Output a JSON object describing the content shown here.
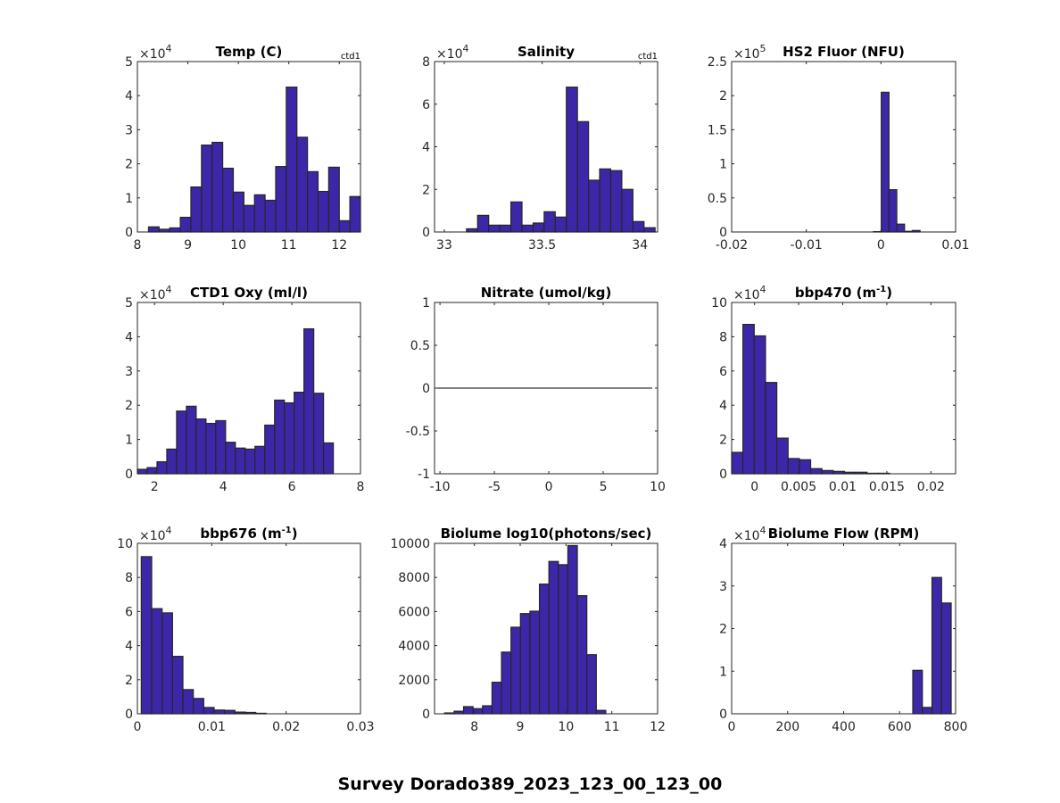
{
  "figure": {
    "title": "Survey Dorado389_2023_123_00_123_00",
    "bar_color": "#3d26a8",
    "edge_color": "#262626",
    "axis_color": "#262626"
  },
  "chart_data": [
    {
      "type": "bar",
      "title": "Temp (C)",
      "corner_label": "ctd1",
      "exponent_label": "×10",
      "exponent": "4",
      "xlim": [
        8,
        12.42
      ],
      "ylim": [
        0,
        5
      ],
      "xticks": [
        8,
        9,
        10,
        11,
        12
      ],
      "xtick_labels": [
        "8",
        "9",
        "10",
        "11",
        "12"
      ],
      "yticks": [
        0,
        1,
        2,
        3,
        4,
        5
      ],
      "ytick_labels": [
        "0",
        "1",
        "2",
        "3",
        "4",
        "5"
      ],
      "bin_start": 8.22,
      "bin_width": 0.21,
      "values": [
        0.15,
        0.08,
        0.12,
        0.43,
        1.32,
        2.55,
        2.63,
        1.87,
        1.17,
        0.78,
        1.09,
        0.93,
        1.92,
        4.25,
        2.78,
        1.77,
        1.19,
        1.9,
        0.33,
        1.04
      ]
    },
    {
      "type": "bar",
      "title": "Salinity",
      "corner_label": "ctd1",
      "exponent_label": "×10",
      "exponent": "4",
      "xlim": [
        32.95,
        34.09
      ],
      "ylim": [
        0,
        8
      ],
      "xticks": [
        33,
        33.5,
        34
      ],
      "xtick_labels": [
        "33",
        "33.5",
        "34"
      ],
      "yticks": [
        0,
        2,
        4,
        6,
        8
      ],
      "ytick_labels": [
        "0",
        "2",
        "4",
        "6",
        "8"
      ],
      "bin_start": 33.0,
      "bin_width": 0.0567,
      "values": [
        0,
        0,
        0.15,
        0.78,
        0.32,
        0.32,
        1.41,
        0.32,
        0.42,
        0.95,
        0.7,
        6.8,
        5.18,
        2.43,
        2.96,
        2.88,
        2.0,
        0.49,
        0.2
      ]
    },
    {
      "type": "bar",
      "title": "HS2 Fluor (NFU)",
      "corner_label": "",
      "exponent_label": "×10",
      "exponent": "5",
      "xlim": [
        -0.02,
        0.01
      ],
      "ylim": [
        0,
        2.5
      ],
      "xticks": [
        -0.02,
        -0.01,
        0,
        0.01
      ],
      "xtick_labels": [
        "-0.02",
        "-0.01",
        "0",
        "0.01"
      ],
      "yticks": [
        0,
        0.5,
        1,
        1.5,
        2,
        2.5
      ],
      "ytick_labels": [
        "0",
        "0.5",
        "1",
        "1.5",
        "2",
        "2.5"
      ],
      "bin_start": -0.001,
      "bin_width": 0.00104,
      "values": [
        0.005,
        2.05,
        0.62,
        0.115,
        0.01,
        0.022
      ]
    },
    {
      "type": "bar",
      "title": "CTD1 Oxy (ml/l)",
      "corner_label": "",
      "exponent_label": "×10",
      "exponent": "4",
      "xlim": [
        1.5,
        8
      ],
      "ylim": [
        0,
        5
      ],
      "xticks": [
        2,
        4,
        6,
        8
      ],
      "xtick_labels": [
        "2",
        "4",
        "6",
        "8"
      ],
      "yticks": [
        0,
        1,
        2,
        3,
        4,
        5
      ],
      "ytick_labels": [
        "0",
        "1",
        "2",
        "3",
        "4",
        "5"
      ],
      "bin_start": 1.5,
      "bin_width": 0.2855,
      "values": [
        0.13,
        0.18,
        0.35,
        0.72,
        1.83,
        1.97,
        1.6,
        1.47,
        1.55,
        0.92,
        0.75,
        0.72,
        0.8,
        1.42,
        2.15,
        2.07,
        2.38,
        4.23,
        2.35,
        0.9
      ]
    },
    {
      "type": "line",
      "title": "Nitrate (umol/kg)",
      "corner_label": "",
      "exponent_label": "",
      "exponent": "",
      "xlim": [
        -10.5,
        10
      ],
      "ylim": [
        -1,
        1
      ],
      "xticks": [
        -10,
        -5,
        0,
        5,
        10
      ],
      "xtick_labels": [
        "-10",
        "-5",
        "0",
        "5",
        "10"
      ],
      "yticks": [
        -1,
        -0.5,
        0,
        0.5,
        1
      ],
      "ytick_labels": [
        "-1",
        "-0.5",
        "0",
        "0.5",
        "1"
      ],
      "line_x": [
        -10.5,
        9.5
      ],
      "line_y": [
        0,
        0
      ]
    },
    {
      "type": "bar",
      "title": "bbp470 (m",
      "title_sup": "-1",
      "title_end": ")",
      "corner_label": "",
      "exponent_label": "×10",
      "exponent": "4",
      "xlim": [
        -0.0026,
        0.0228
      ],
      "ylim": [
        0,
        10
      ],
      "xticks": [
        0,
        0.005,
        0.01,
        0.015,
        0.02
      ],
      "xtick_labels": [
        "0",
        "0.005",
        "0.01",
        "0.015",
        "0.02"
      ],
      "yticks": [
        0,
        2,
        4,
        6,
        8,
        10
      ],
      "ytick_labels": [
        "0",
        "2",
        "4",
        "6",
        "8",
        "10"
      ],
      "bin_start": -0.0026,
      "bin_width": 0.00128,
      "values": [
        1.25,
        8.72,
        8.05,
        5.33,
        2.08,
        0.89,
        0.82,
        0.3,
        0.19,
        0.14,
        0.09,
        0.09,
        0.03,
        0.03
      ]
    },
    {
      "type": "bar",
      "title": "bbp676 (m",
      "title_sup": "-1",
      "title_end": ")",
      "corner_label": "",
      "exponent_label": "×10",
      "exponent": "4",
      "xlim": [
        0,
        0.03
      ],
      "ylim": [
        0,
        10
      ],
      "xticks": [
        0,
        0.01,
        0.02,
        0.03
      ],
      "xtick_labels": [
        "0",
        "0.01",
        "0.02",
        "0.03"
      ],
      "yticks": [
        0,
        2,
        4,
        6,
        8,
        10
      ],
      "ytick_labels": [
        "0",
        "2",
        "4",
        "6",
        "8",
        "10"
      ],
      "bin_start": 0.00052,
      "bin_width": 0.0014,
      "values": [
        9.22,
        6.17,
        5.92,
        3.37,
        1.42,
        0.9,
        0.37,
        0.22,
        0.2,
        0.1,
        0.08,
        0.03
      ]
    },
    {
      "type": "bar",
      "title": "Biolume log10(photons/sec)",
      "corner_label": "",
      "exponent_label": "",
      "exponent": "",
      "xlim": [
        7.13,
        12
      ],
      "ylim": [
        0,
        10000
      ],
      "xticks": [
        8,
        9,
        10,
        11,
        12
      ],
      "xtick_labels": [
        "8",
        "9",
        "10",
        "11",
        "12"
      ],
      "yticks": [
        0,
        2000,
        4000,
        6000,
        8000,
        10000
      ],
      "ytick_labels": [
        "0",
        "2000",
        "4000",
        "6000",
        "8000",
        "10000"
      ],
      "bin_start": 7.35,
      "bin_width": 0.207,
      "values": [
        50,
        150,
        420,
        300,
        470,
        1850,
        3620,
        5080,
        5880,
        6020,
        7610,
        8940,
        8750,
        9870,
        6930,
        3470,
        200
      ]
    },
    {
      "type": "bar",
      "title": "Biolume Flow (RPM)",
      "corner_label": "",
      "exponent_label": "×10",
      "exponent": "4",
      "xlim": [
        0,
        800
      ],
      "ylim": [
        0,
        4
      ],
      "xticks": [
        0,
        200,
        400,
        600,
        800
      ],
      "xtick_labels": [
        "0",
        "200",
        "400",
        "600",
        "800"
      ],
      "yticks": [
        0,
        1,
        2,
        3,
        4
      ],
      "ytick_labels": [
        "0",
        "1",
        "2",
        "3",
        "4"
      ],
      "bin_start": 647,
      "bin_width": 34.3,
      "values": [
        1.02,
        0.15,
        3.2,
        2.6
      ]
    }
  ]
}
